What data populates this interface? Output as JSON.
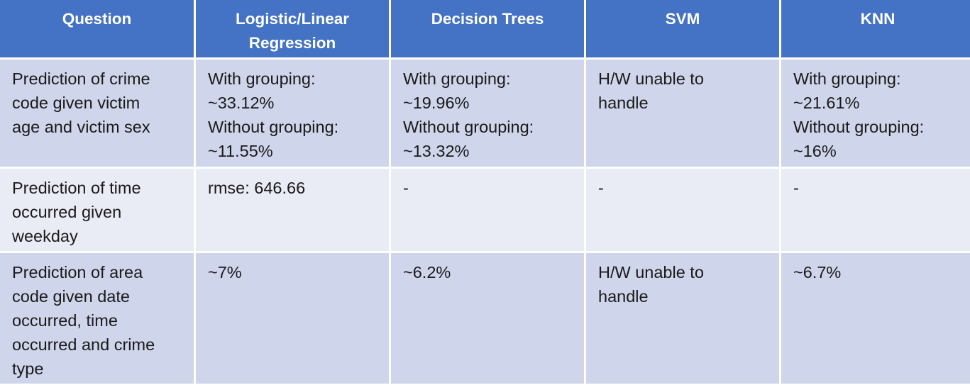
{
  "table": {
    "headers": [
      "Question",
      "Logistic/Linear\nRegression",
      "Decision Trees",
      "SVM",
      "KNN"
    ],
    "rows": [
      {
        "question": "Prediction of crime\ncode given victim\nage and victim sex",
        "logistic_linear": "With grouping:\n~33.12%\nWithout grouping:\n~11.55%",
        "decision_trees": "With grouping:\n~19.96%\nWithout grouping:\n~13.32%",
        "svm": "H/W unable to\nhandle",
        "knn": "With grouping:\n~21.61%\nWithout grouping:\n~16%"
      },
      {
        "question": "Prediction of time\noccurred given\nweekday",
        "logistic_linear": "rmse: 646.66",
        "decision_trees": "-",
        "svm": "-",
        "knn": "-"
      },
      {
        "question": "Prediction of area\ncode given date\noccurred, time\noccurred and crime\ntype",
        "logistic_linear": "~7%",
        "decision_trees": "~6.2%",
        "svm": "H/W unable to\nhandle",
        "knn": "~6.7%"
      }
    ]
  },
  "colors": {
    "header": "#4472c4",
    "row_dark": "#cfd5ea",
    "row_light": "#e9ebf5"
  }
}
